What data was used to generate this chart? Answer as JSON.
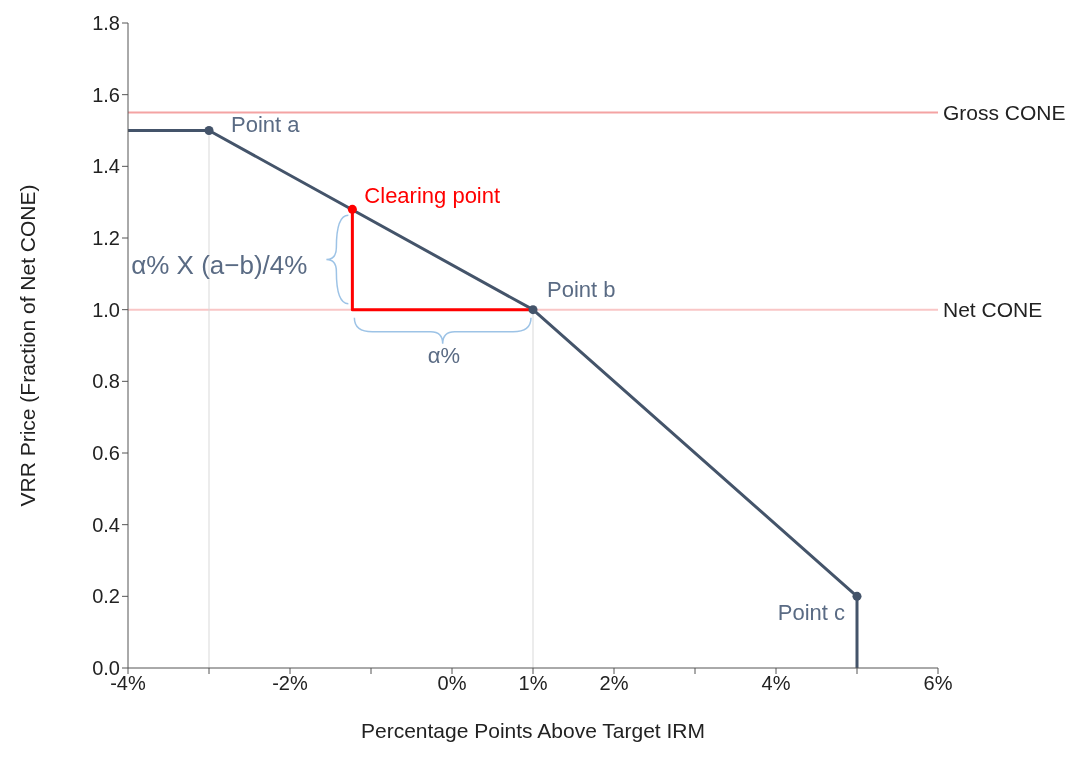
{
  "chart_data": {
    "type": "line",
    "xlabel": "Percentage Points Above Target IRM",
    "ylabel": "VRR Price (Fraction of Net CONE)",
    "xlim": [
      -4,
      6
    ],
    "ylim": [
      0,
      1.8
    ],
    "xticks": [
      {
        "value": -4,
        "label": "-4%"
      },
      {
        "value": -3,
        "label": null
      },
      {
        "value": -2,
        "label": "-2%"
      },
      {
        "value": -1,
        "label": null
      },
      {
        "value": 0,
        "label": "0%"
      },
      {
        "value": 1,
        "label": "1%"
      },
      {
        "value": 2,
        "label": "2%"
      },
      {
        "value": 3,
        "label": null
      },
      {
        "value": 4,
        "label": "4%"
      },
      {
        "value": 5,
        "label": null
      },
      {
        "value": 6,
        "label": "6%"
      }
    ],
    "yticks": [
      {
        "value": 0,
        "label": "0.0"
      },
      {
        "value": 0.2,
        "label": "0.2"
      },
      {
        "value": 0.4,
        "label": "0.4"
      },
      {
        "value": 0.6,
        "label": "0.6"
      },
      {
        "value": 0.8,
        "label": "0.8"
      },
      {
        "value": 1,
        "label": "1.0"
      },
      {
        "value": 1.2,
        "label": "1.2"
      },
      {
        "value": 1.4,
        "label": "1.4"
      },
      {
        "value": 1.6,
        "label": "1.6"
      },
      {
        "value": 1.8,
        "label": "1.8"
      }
    ],
    "series": [
      {
        "type": "line",
        "color": "#d9d9d9",
        "x": [
          -3,
          -3
        ],
        "values": [
          0,
          1.5
        ],
        "marker": "none"
      },
      {
        "type": "line",
        "color": "#d9d9d9",
        "x": [
          1,
          1
        ],
        "values": [
          0,
          1
        ]
      },
      {
        "color": "#44546a",
        "x": [
          -4,
          -3,
          1,
          5,
          5
        ],
        "values": [
          1.5,
          1.5,
          1,
          0.2,
          0
        ],
        "marker": "none"
      },
      {
        "type": "line",
        "color": "#ff0000",
        "x": [
          -1.23,
          -1.23,
          1
        ],
        "values": [
          1.28,
          1,
          1
        ],
        "marker": "none"
      },
      {
        "type": "scatter",
        "color": "#44546a",
        "x": [
          -3,
          1,
          5
        ],
        "values": [
          1.5,
          1,
          0.2
        ],
        "marker": "circle"
      },
      {
        "type": "scatter",
        "color": "#ff0000",
        "x": [
          -1.23
        ],
        "values": [
          1.28
        ],
        "marker": "circle"
      }
    ],
    "ref_lines": [
      {
        "axis": "y",
        "value": 1.55,
        "label": "Gross CONE",
        "color": "#f4a3a3"
      },
      {
        "axis": "y",
        "value": 1,
        "label": "Net CONE",
        "color": "#f9c6c6"
      }
    ],
    "annotations": [
      {
        "text": "Point a",
        "x": -3,
        "y": 1.5
      },
      {
        "text": "Clearing point",
        "x": -1.23,
        "y": 1.28
      },
      {
        "text": "Point b",
        "x": 1,
        "y": 1
      },
      {
        "text": "Point c",
        "x": 5,
        "y": 0.2
      },
      {
        "text": "α% X (a−b)/4%",
        "x": -1.23,
        "y": 1.14
      },
      {
        "text": "α%",
        "x": -0.1,
        "y": 1
      }
    ]
  }
}
